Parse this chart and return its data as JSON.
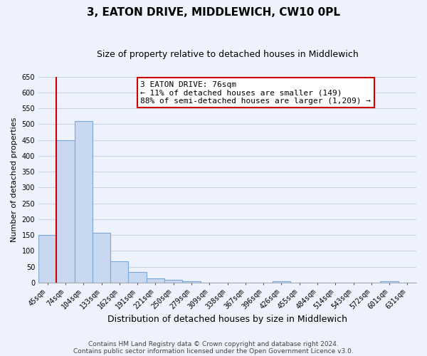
{
  "title": "3, EATON DRIVE, MIDDLEWICH, CW10 0PL",
  "subtitle": "Size of property relative to detached houses in Middlewich",
  "xlabel": "Distribution of detached houses by size in Middlewich",
  "ylabel": "Number of detached properties",
  "bar_labels": [
    "45sqm",
    "74sqm",
    "104sqm",
    "133sqm",
    "162sqm",
    "191sqm",
    "221sqm",
    "250sqm",
    "279sqm",
    "309sqm",
    "338sqm",
    "367sqm",
    "396sqm",
    "426sqm",
    "455sqm",
    "484sqm",
    "514sqm",
    "543sqm",
    "572sqm",
    "601sqm",
    "631sqm"
  ],
  "bar_values": [
    150,
    450,
    510,
    158,
    67,
    33,
    13,
    8,
    5,
    0,
    0,
    0,
    0,
    5,
    0,
    0,
    0,
    0,
    0,
    5,
    0
  ],
  "bar_fill_color": "#c8d8f0",
  "bar_edge_color": "#7aa8d8",
  "vline_color": "#cc0000",
  "annotation_text": "3 EATON DRIVE: 76sqm\n← 11% of detached houses are smaller (149)\n88% of semi-detached houses are larger (1,209) →",
  "annotation_box_facecolor": "#ffffff",
  "annotation_box_edgecolor": "#cc0000",
  "ylim": [
    0,
    650
  ],
  "yticks": [
    0,
    50,
    100,
    150,
    200,
    250,
    300,
    350,
    400,
    450,
    500,
    550,
    600,
    650
  ],
  "grid_color": "#c8d4e8",
  "background_color": "#eef2fc",
  "footer_line1": "Contains HM Land Registry data © Crown copyright and database right 2024.",
  "footer_line2": "Contains public sector information licensed under the Open Government Licence v3.0.",
  "title_fontsize": 11,
  "subtitle_fontsize": 9,
  "xlabel_fontsize": 9,
  "ylabel_fontsize": 8,
  "tick_fontsize": 7,
  "annotation_fontsize": 8,
  "footer_fontsize": 6.5,
  "footer_color": "#444444"
}
